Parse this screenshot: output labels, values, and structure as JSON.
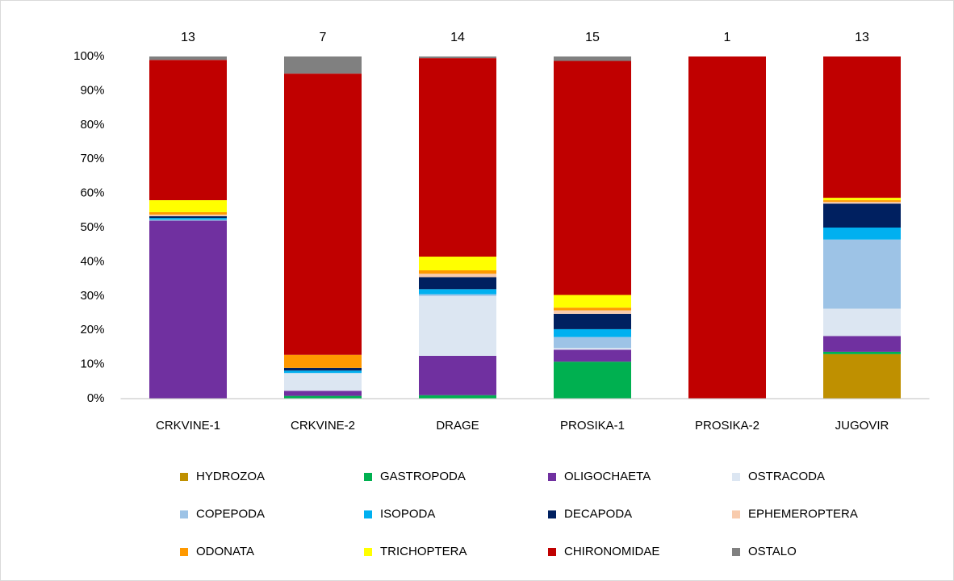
{
  "chart_data": {
    "type": "stacked_bar_100",
    "categories": [
      "CRKVINE-1",
      "CRKVINE-2",
      "DRAGE",
      "PROSIKA-1",
      "PROSIKA-2",
      "JUGOVIR"
    ],
    "annotations": [
      13,
      7,
      14,
      15,
      1,
      13
    ],
    "ylim": [
      0,
      100
    ],
    "yticks": [
      {
        "value": 0,
        "label": "0%"
      },
      {
        "value": 10,
        "label": "10%"
      },
      {
        "value": 20,
        "label": "20%"
      },
      {
        "value": 30,
        "label": "30%"
      },
      {
        "value": 40,
        "label": "40%"
      },
      {
        "value": 50,
        "label": "50%"
      },
      {
        "value": 60,
        "label": "60%"
      },
      {
        "value": 70,
        "label": "70%"
      },
      {
        "value": 80,
        "label": "80%"
      },
      {
        "value": 90,
        "label": "90%"
      },
      {
        "value": 100,
        "label": "100%"
      }
    ],
    "legend_position": "bottom",
    "series": [
      {
        "name": "HYDROZOA",
        "color": "#bf9000",
        "values": [
          0,
          0,
          0,
          0,
          0,
          13
        ]
      },
      {
        "name": "GASTROPODA",
        "color": "#00b050",
        "values": [
          0,
          0.8,
          1,
          10.8,
          0,
          0.7
        ]
      },
      {
        "name": "OLIGOCHAETA",
        "color": "#7030a0",
        "values": [
          52,
          1.5,
          11.5,
          3.5,
          0,
          4.6
        ]
      },
      {
        "name": "OSTRACODA",
        "color": "#dce6f2",
        "values": [
          0,
          5.2,
          17.5,
          0.5,
          0,
          8
        ]
      },
      {
        "name": "COPEPODA",
        "color": "#9dc3e6",
        "values": [
          0.3,
          0,
          0.5,
          3.2,
          0,
          20.2
        ]
      },
      {
        "name": "ISOPODA",
        "color": "#00b0f0",
        "values": [
          0.5,
          0.7,
          1.5,
          2.3,
          0,
          3.5
        ]
      },
      {
        "name": "DECAPODA",
        "color": "#002060",
        "values": [
          0.5,
          0.8,
          3.5,
          4.5,
          0,
          7
        ]
      },
      {
        "name": "EPHEMEROPTERA",
        "color": "#f8cbad",
        "values": [
          0.5,
          0,
          1,
          1,
          0,
          0.5
        ]
      },
      {
        "name": "ODONATA",
        "color": "#ff9900",
        "values": [
          0.7,
          3.8,
          1,
          0.8,
          0,
          0.5
        ]
      },
      {
        "name": "TRICHOPTERA",
        "color": "#ffff00",
        "values": [
          3.5,
          0,
          4,
          3.7,
          0,
          0.7
        ]
      },
      {
        "name": "CHIRONOMIDAE",
        "color": "#c00000",
        "values": [
          41,
          82.2,
          58,
          68.4,
          100,
          41.3
        ]
      },
      {
        "name": "OSTALO",
        "color": "#808080",
        "values": [
          1,
          5,
          0.5,
          1.3,
          0,
          0
        ]
      }
    ]
  }
}
